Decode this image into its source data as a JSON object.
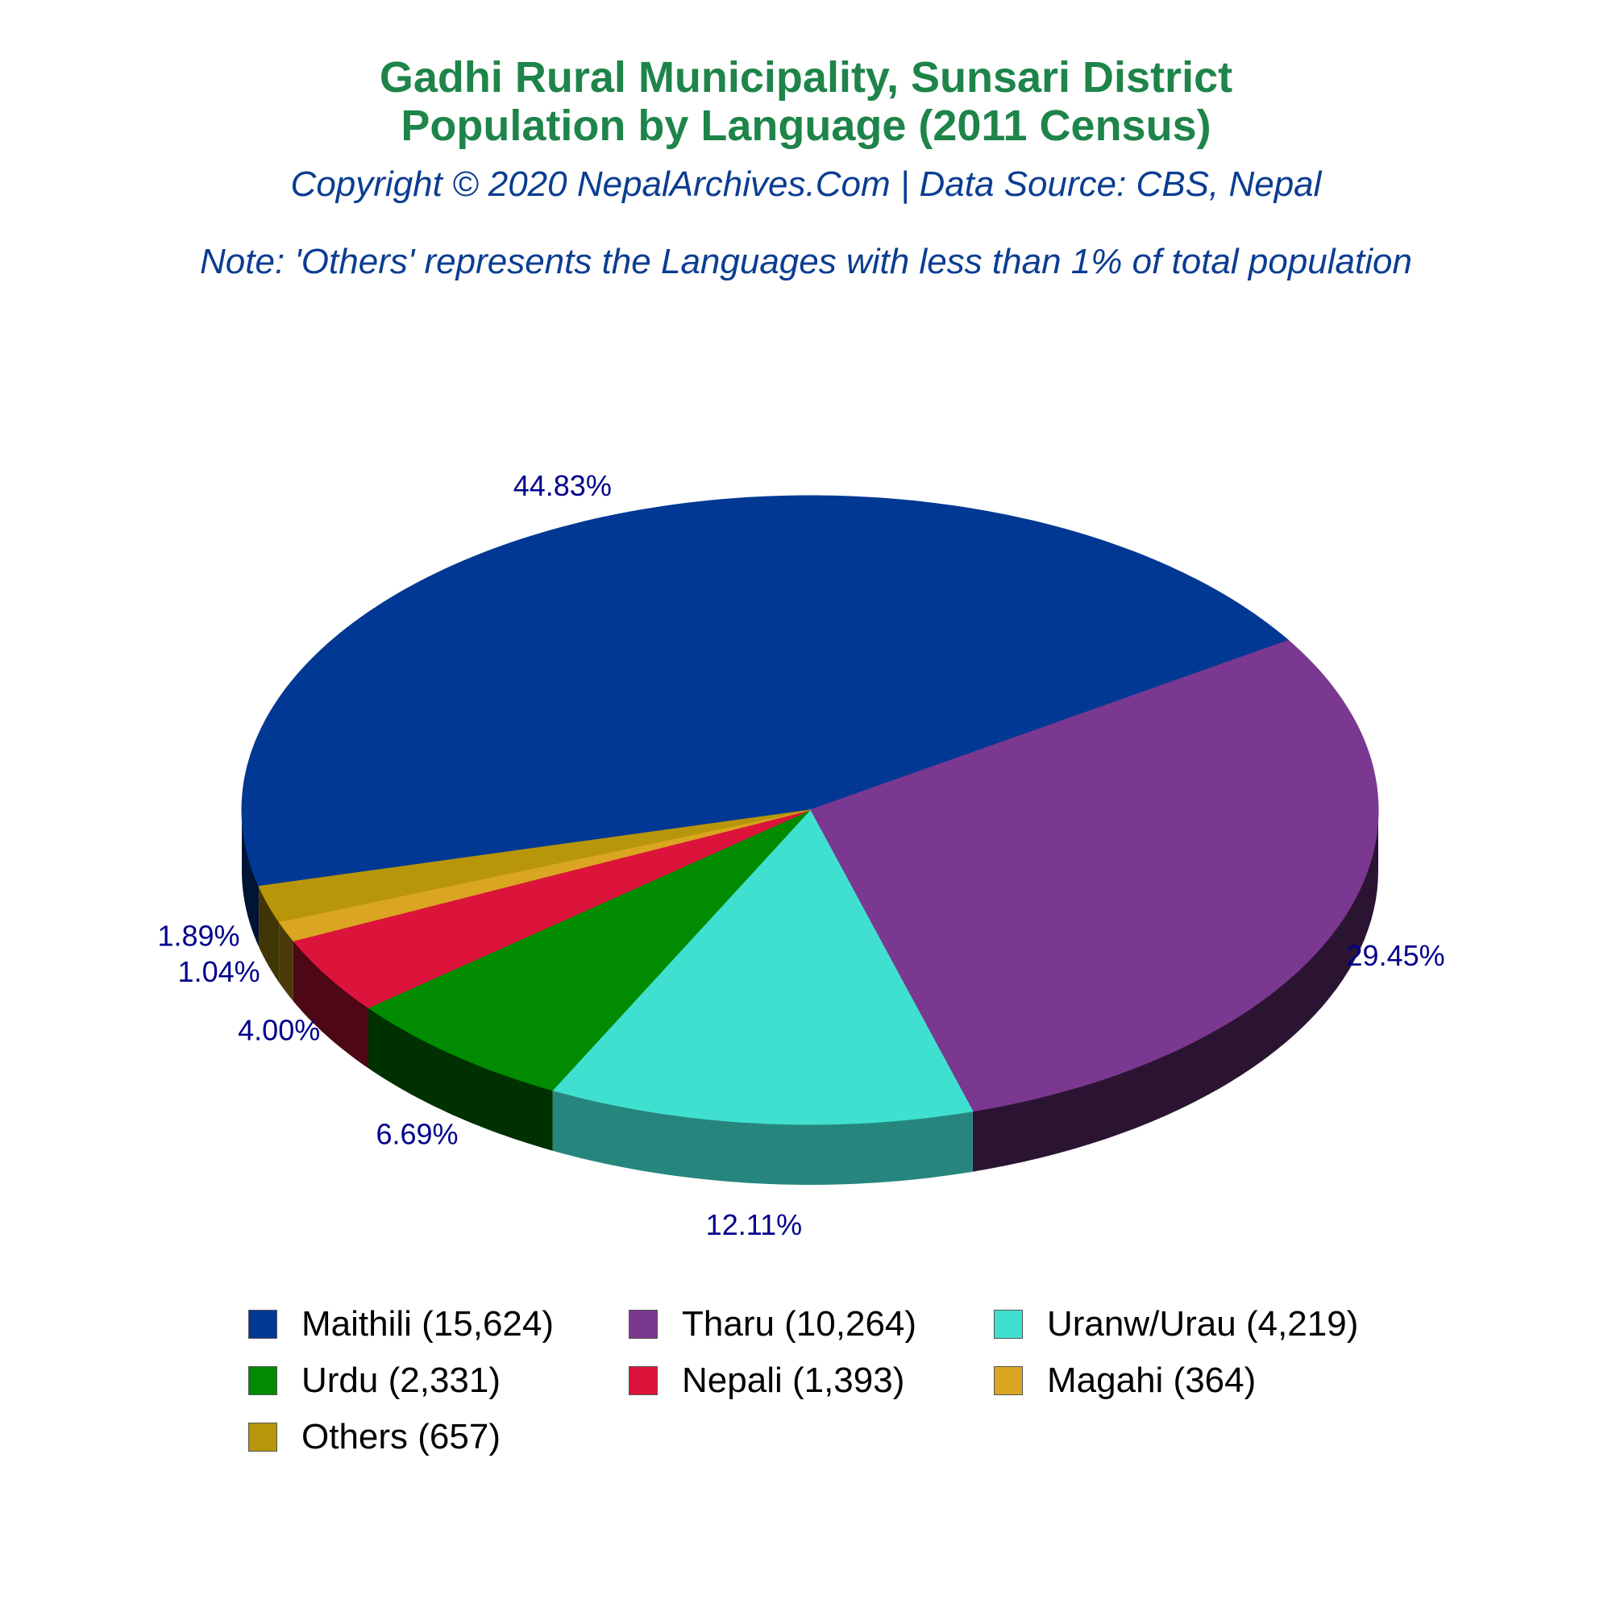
{
  "chart_data": {
    "type": "pie",
    "title": "Gadhi Rural Municipality, Sunsari District",
    "title_line2": "Population by Language (2011 Census)",
    "subtitle": "Copyright © 2020 NepalArchives.Com | Data Source: CBS, Nepal",
    "note": "Note: 'Others' represents the Languages with less than 1% of total population",
    "legend_position": "bottom",
    "slices": [
      {
        "label": "Maithili (15,624)",
        "value": 15624,
        "percent_label": "44.83%",
        "color": "#003893"
      },
      {
        "label": "Tharu (10,264)",
        "value": 10264,
        "percent_label": "29.45%",
        "color": "#7b3890"
      },
      {
        "label": "Uranw/Urau (4,219)",
        "value": 4219,
        "percent_label": "12.11%",
        "color": "#40e0d0"
      },
      {
        "label": "Urdu (2,331)",
        "value": 2331,
        "percent_label": "6.69%",
        "color": "#008b00"
      },
      {
        "label": "Nepali (1,393)",
        "value": 1393,
        "percent_label": "4.00%",
        "color": "#dc143c"
      },
      {
        "label": "Magahi (364)",
        "value": 364,
        "percent_label": "1.04%",
        "color": "#daa520"
      },
      {
        "label": "Others (657)",
        "value": 657,
        "percent_label": "1.89%",
        "color": "#b8960a"
      }
    ],
    "label_color": "#00008b"
  }
}
